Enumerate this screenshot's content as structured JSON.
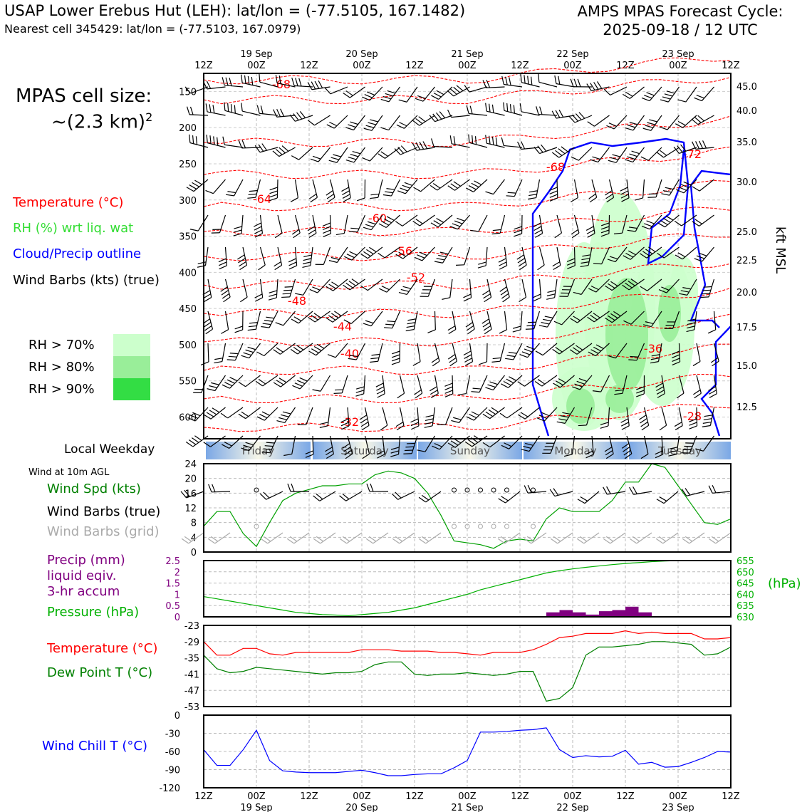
{
  "header": {
    "station": "USAP Lower Erebus Hut (LEH): lat/lon = (-77.5105, 167.1482)",
    "cell": "Nearest cell 345429: lat/lon = (-77.5103, 167.0979)",
    "model_line1": "AMPS MPAS Forecast Cycle:",
    "model_line2": "2025-09-18 / 12 UTC"
  },
  "cell_size": {
    "line1": "MPAS cell size:",
    "line2": "~(2.3 km)",
    "exp": "2"
  },
  "legend": {
    "temperature": "Temperature (°C)",
    "rh": "RH (%) wrt liq. wat",
    "cloud": "Cloud/Precip outline",
    "barbs": "Wind Barbs (kts) (true)",
    "rh70": "RH > 70%",
    "rh80": "RH > 80%",
    "rh90": "RH > 90%"
  },
  "colors": {
    "temp": "#ff0000",
    "rh_green": "#00a000",
    "cloud": "#0000ff",
    "rh70": "#ccffcc",
    "rh80": "#99ee99",
    "rh90": "#33dd44",
    "precip": "#800080",
    "pressure": "#00b000",
    "dew": "#008000",
    "chill": "#0000ff",
    "grid_barb": "#aaaaaa"
  },
  "time_axis": {
    "hour_labels": [
      "12Z",
      "00Z",
      "12Z",
      "00Z",
      "12Z",
      "00Z",
      "12Z",
      "00Z",
      "12Z",
      "00Z",
      "12Z"
    ],
    "date_labels": [
      "19 Sep",
      "20 Sep",
      "21 Sep",
      "22 Sep",
      "23 Sep"
    ]
  },
  "weekdays": [
    "Friday",
    "Saturday",
    "Sunday",
    "Monday",
    "Tuesday"
  ],
  "weekday_title": "Local Weekday",
  "wind10_title": "Wind at 10m AGL",
  "panel_labels": {
    "wind_spd": "Wind Spd (kts)",
    "wind_barbs": "Wind Barbs (true)",
    "wind_grid": "Wind Barbs (grid)",
    "precip1": "Precip (mm)",
    "precip2": "liquid eqiv.",
    "precip3": "3-hr accum",
    "pressure": "Pressure (hPa)",
    "hpa": "(hPa)",
    "temp": "Temperature (°C)",
    "dew": "Dew Point T (°C)",
    "chill": "Wind Chill T (°C)",
    "kft": "kft MSL"
  },
  "chart_data": [
    {
      "type": "heatmap",
      "ylabel": "kft MSL",
      "pressure_ticks": [
        150,
        200,
        250,
        300,
        350,
        400,
        450,
        500,
        550,
        600
      ],
      "kft_ticks": [
        45.0,
        40.0,
        35.0,
        30.0,
        25.0,
        22.5,
        20.0,
        17.5,
        15.0,
        12.5
      ],
      "temp_contour_labels": [
        "-68",
        "-64",
        "-60",
        "-56",
        "-52",
        "-48",
        "-44",
        "-40",
        "-32",
        "-68",
        "-72",
        "-36",
        "-28"
      ]
    },
    {
      "type": "line",
      "name": "wind_speed",
      "ylim": [
        0,
        24
      ],
      "yticks": [
        0,
        4,
        8,
        12,
        16,
        20,
        24
      ],
      "values": [
        7,
        11,
        11,
        5,
        1.5,
        8,
        14,
        16,
        17,
        18,
        18,
        18.5,
        18.5,
        21,
        22,
        21.5,
        20,
        16,
        10,
        3,
        2.5,
        2,
        1,
        3,
        3.5,
        3,
        9,
        12,
        11,
        11,
        11,
        14,
        19,
        19,
        24,
        23,
        18,
        13,
        8,
        7.5,
        9
      ]
    },
    {
      "type": "bar",
      "name": "precip_mm",
      "ylim": [
        0,
        2.5
      ],
      "yticks": [
        0,
        0.5,
        1.0,
        1.5,
        2.0,
        2.5
      ],
      "values": [
        0,
        0,
        0,
        0,
        0,
        0,
        0,
        0,
        0,
        0,
        0,
        0,
        0,
        0,
        0,
        0,
        0,
        0,
        0,
        0,
        0,
        0,
        0,
        0,
        0,
        0,
        0.2,
        0.3,
        0.2,
        0.1,
        0.25,
        0.3,
        0.45,
        0.2,
        0,
        0,
        0,
        0,
        0,
        0
      ]
    },
    {
      "type": "line",
      "name": "pressure_hpa",
      "ylim": [
        630,
        655
      ],
      "yticks": [
        630,
        635,
        640,
        645,
        650,
        655
      ],
      "values": [
        639,
        638,
        637,
        636,
        635,
        634,
        633,
        632,
        631.5,
        631,
        630.8,
        630.5,
        631,
        631.5,
        632,
        633,
        634,
        635.5,
        637,
        638.5,
        640,
        642,
        643.5,
        645,
        646.5,
        648,
        649.5,
        650.5,
        651.3,
        652,
        652.6,
        653.2,
        653.7,
        654.1,
        654.5,
        654.8,
        655,
        655,
        655,
        655,
        655
      ]
    },
    {
      "type": "line",
      "name": "temp_dew",
      "ylim": [
        -53,
        -23
      ],
      "yticks": [
        -53,
        -47,
        -41,
        -35,
        -29,
        -23
      ],
      "series": [
        {
          "name": "Temperature",
          "values": [
            -29,
            -34,
            -34,
            -31.5,
            -31.5,
            -33.5,
            -34,
            -33,
            -33,
            -33,
            -33,
            -33,
            -32,
            -32,
            -32,
            -32.5,
            -32.5,
            -32.5,
            -33,
            -33,
            -33.5,
            -34,
            -33,
            -33,
            -33,
            -32,
            -30,
            -27.5,
            -27,
            -26,
            -26,
            -26,
            -25,
            -26,
            -25.5,
            -26,
            -26,
            -26,
            -28,
            -28,
            -27.5
          ]
        },
        {
          "name": "Dew Point",
          "values": [
            -34,
            -39,
            -40.5,
            -40,
            -38.5,
            -39,
            -39.5,
            -40,
            -40.5,
            -41,
            -40.5,
            -40.5,
            -40,
            -37.5,
            -36.5,
            -36.5,
            -41,
            -41.5,
            -41,
            -41,
            -40.5,
            -41,
            -41.5,
            -41,
            -40,
            -40,
            -51,
            -50,
            -46,
            -34,
            -31,
            -31,
            -30.5,
            -30,
            -29,
            -29,
            -29.5,
            -30,
            -34,
            -33.5,
            -31
          ]
        }
      ]
    },
    {
      "type": "line",
      "name": "wind_chill",
      "ylim": [
        -120,
        0
      ],
      "yticks": [
        0,
        -30,
        -60,
        -90,
        -120
      ],
      "values": [
        -57,
        -83,
        -83,
        -57,
        -25,
        -75,
        -92,
        -94,
        -95,
        -95,
        -95,
        -93,
        -91,
        -95,
        -100,
        -100,
        -98,
        -97,
        -97,
        -87,
        -75,
        -28,
        -28,
        -27,
        -25,
        -24,
        -21,
        -57,
        -70,
        -67,
        -69,
        -68,
        -58,
        -81,
        -78,
        -86,
        -85,
        -78,
        -70,
        -60,
        -61
      ]
    }
  ]
}
